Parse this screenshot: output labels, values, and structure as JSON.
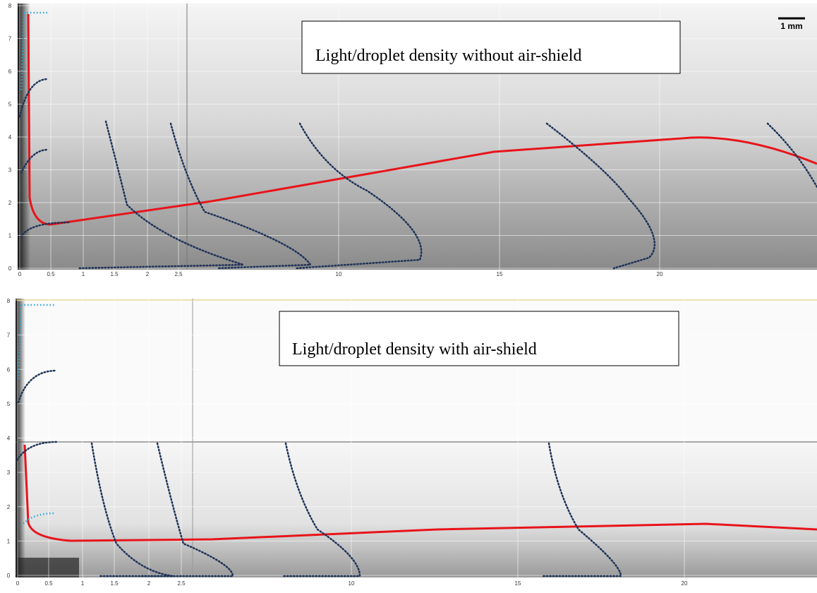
{
  "panels": [
    {
      "label": "Light/droplet density without air-shield",
      "scale_bar": "1 mm",
      "y_ticks": [
        0,
        1,
        2,
        3,
        4,
        5,
        6,
        7,
        8
      ],
      "x_ticks": [
        0,
        0.5,
        1,
        1.5,
        2,
        2.5,
        10,
        15,
        20
      ]
    },
    {
      "label": "Light/droplet density with air-shield",
      "y_ticks": [
        0,
        1,
        2,
        3,
        4,
        5,
        6,
        7,
        8
      ],
      "x_ticks": [
        0,
        0.5,
        1,
        1.5,
        2,
        2.5,
        10,
        15,
        20
      ]
    }
  ]
}
